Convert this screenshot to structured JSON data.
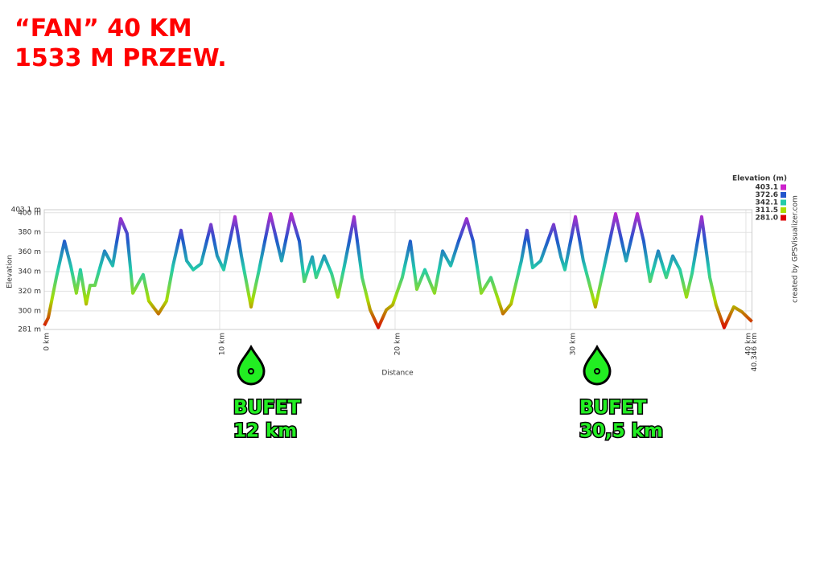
{
  "title": [
    "“FAN” 40 KM",
    "1533 M PRZEW."
  ],
  "chart_data": {
    "type": "line",
    "ylabel": "Elevation",
    "xlabel": "Distance",
    "credit": "created by GPSVisualizer.com",
    "xlim": [
      0,
      40.346
    ],
    "ylim": [
      281,
      403.1
    ],
    "xticks": [
      {
        "value": 0,
        "label": "0 km"
      },
      {
        "value": 10,
        "label": "10 km"
      },
      {
        "value": 20,
        "label": "20 km"
      },
      {
        "value": 30,
        "label": "30 km"
      },
      {
        "value": 40,
        "label": "40 km"
      },
      {
        "value": 40.346,
        "label": "40.346 km"
      }
    ],
    "yticks": [
      {
        "value": 281,
        "label": "281 m"
      },
      {
        "value": 300,
        "label": "300 m"
      },
      {
        "value": 320,
        "label": "320 m"
      },
      {
        "value": 340,
        "label": "340 m"
      },
      {
        "value": 360,
        "label": "360 m"
      },
      {
        "value": 380,
        "label": "380 m"
      },
      {
        "value": 400,
        "label": "400 m"
      },
      {
        "value": 403.1,
        "label": "403.1 m"
      }
    ],
    "grid": true,
    "legend": {
      "title": "Elevation (m)",
      "items": [
        {
          "value": 403.1,
          "label": "403.1",
          "color": "#cc22cc"
        },
        {
          "value": 372.6,
          "label": "372.6",
          "color": "#2255cc"
        },
        {
          "value": 342.1,
          "label": "342.1",
          "color": "#22ccaa"
        },
        {
          "value": 311.5,
          "label": "311.5",
          "color": "#aadd00"
        },
        {
          "value": 281.0,
          "label": "281.0",
          "color": "#dd0000"
        }
      ]
    },
    "x": [
      0,
      0.23,
      0.69,
      1.15,
      1.51,
      1.83,
      2.06,
      2.39,
      2.61,
      2.89,
      3.44,
      3.9,
      4.36,
      4.72,
      5.05,
      5.64,
      5.96,
      6.51,
      6.97,
      7.34,
      7.8,
      8.12,
      8.49,
      8.94,
      9.5,
      9.86,
      10.23,
      10.87,
      11.24,
      11.79,
      12.25,
      12.89,
      13.53,
      14.08,
      14.54,
      14.82,
      15.28,
      15.5,
      15.96,
      16.38,
      16.74,
      17.11,
      17.66,
      18.12,
      18.58,
      19.04,
      19.5,
      19.86,
      20.41,
      20.87,
      21.24,
      21.7,
      22.25,
      22.71,
      23.17,
      23.62,
      24.08,
      24.45,
      24.91,
      25.46,
      26.15,
      26.61,
      27.2,
      27.52,
      27.84,
      28.3,
      29.04,
      29.45,
      29.68,
      30.28,
      30.73,
      31.42,
      31.88,
      32.57,
      33.17,
      33.81,
      34.17,
      34.54,
      35,
      35.46,
      35.83,
      36.24,
      36.61,
      36.93,
      37.48,
      37.94,
      38.3,
      38.76,
      39.31,
      39.77,
      40.346
    ],
    "series": [
      {
        "name": "Elevation",
        "values": [
          285,
          293,
          334,
          371,
          346,
          318,
          342,
          307,
          326,
          326,
          361,
          346,
          394,
          379,
          318,
          337,
          310,
          297,
          310,
          346,
          382,
          351,
          342,
          348,
          388,
          356,
          342,
          396,
          356,
          304,
          342,
          399,
          351,
          399,
          371,
          330,
          355,
          334,
          356,
          338,
          314,
          346,
          396,
          334,
          301,
          283,
          301,
          306,
          334,
          371,
          322,
          342,
          318,
          361,
          346,
          371,
          394,
          371,
          318,
          334,
          297,
          307,
          351,
          382,
          344,
          351,
          388,
          355,
          342,
          396,
          351,
          304,
          342,
          399,
          351,
          399,
          371,
          330,
          361,
          334,
          356,
          342,
          314,
          338,
          396,
          334,
          306,
          283,
          304,
          299,
          289
        ]
      }
    ],
    "annotations": [
      {
        "lines": [
          "BUFET",
          "12 km"
        ]
      },
      {
        "lines": [
          "BUFET",
          "30,5 km"
        ]
      }
    ]
  }
}
